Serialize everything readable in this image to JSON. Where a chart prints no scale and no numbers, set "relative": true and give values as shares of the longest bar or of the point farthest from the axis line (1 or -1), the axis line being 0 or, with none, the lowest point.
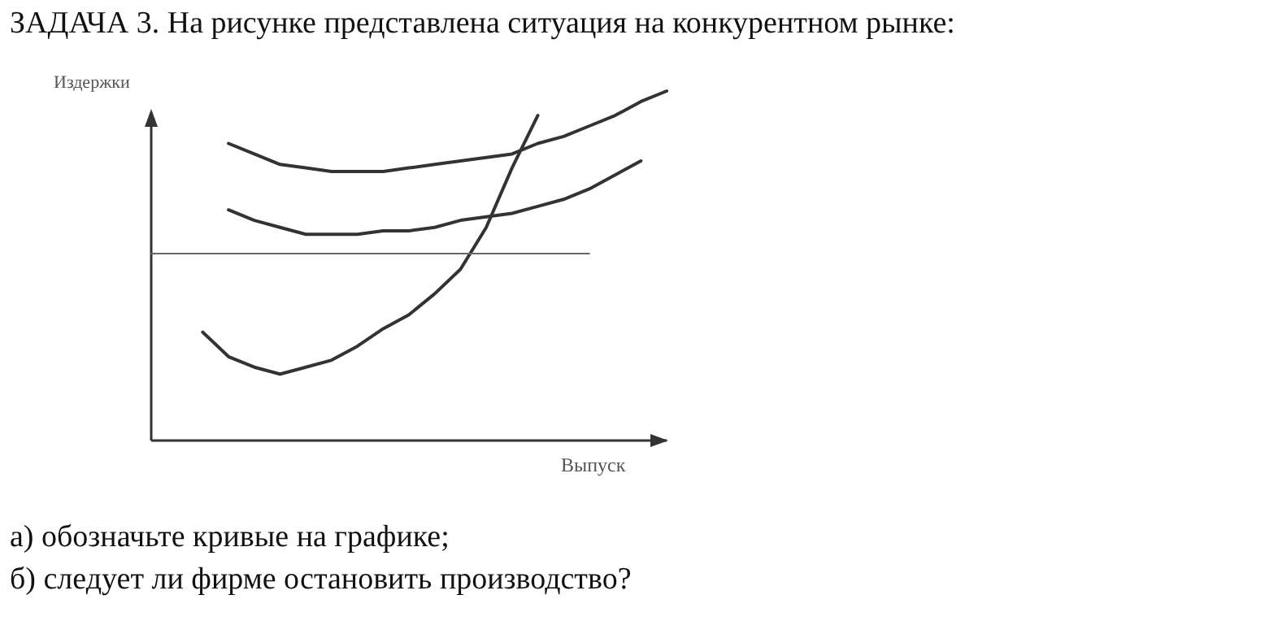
{
  "chart_data": {
    "type": "line",
    "relative": true,
    "title": "ЗАДАЧА 3. На рисунке представлена ситуация на конкурентном рынке:",
    "xlabel": "Выпуск",
    "ylabel": "Издержки",
    "line_style": "solid",
    "categories": [
      null,
      null,
      null,
      null,
      null,
      null,
      null,
      null,
      null,
      null,
      null,
      null,
      null,
      null,
      null,
      null,
      null,
      null,
      null,
      null,
      null
    ],
    "series": [
      {
        "color": "#333333",
        "values": [
          null,
          null,
          null,
          0.85,
          0.82,
          0.79,
          0.78,
          0.77,
          0.77,
          0.77,
          0.78,
          0.79,
          0.8,
          0.81,
          0.82,
          0.85,
          0.87,
          0.9,
          0.93,
          0.97,
          1.0
        ]
      },
      {
        "color": "#333333",
        "values": [
          null,
          null,
          null,
          0.66,
          0.63,
          0.61,
          0.59,
          0.59,
          0.59,
          0.6,
          0.6,
          0.61,
          0.63,
          0.64,
          0.65,
          0.67,
          0.69,
          0.72,
          0.76,
          0.8,
          null
        ]
      },
      {
        "color": "#333333",
        "values": [
          null,
          null,
          0.31,
          0.24,
          0.21,
          0.19,
          0.21,
          0.23,
          0.27,
          0.32,
          0.36,
          0.42,
          0.49,
          0.61,
          0.78,
          0.93,
          null,
          null,
          null,
          null,
          null
        ]
      },
      {
        "color": "#666666",
        "values": [
          0.535,
          0.535,
          0.535,
          0.535,
          0.535,
          0.535,
          0.535,
          0.535,
          0.535,
          0.535,
          0.535,
          0.535,
          0.535,
          0.535,
          0.535,
          0.535,
          0.535,
          0.535,
          null,
          null,
          null
        ]
      }
    ],
    "annotations": [
      "а) обозначьте кривые на графике;",
      "б) следует ли фирме остановить производство?"
    ]
  }
}
